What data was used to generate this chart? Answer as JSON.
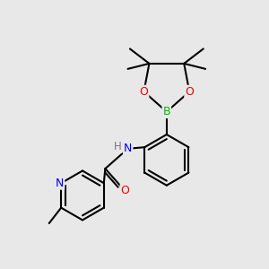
{
  "background_color": "#e8e8e8",
  "bond_color": "#000000",
  "bond_width": 1.5,
  "atom_colors": {
    "B": "#00bb00",
    "O": "#ee0000",
    "N": "#0000ee",
    "C": "#000000",
    "H": "#777777"
  },
  "figsize": [
    3.0,
    3.0
  ],
  "dpi": 100,
  "xlim": [
    0,
    10
  ],
  "ylim": [
    0,
    10
  ]
}
